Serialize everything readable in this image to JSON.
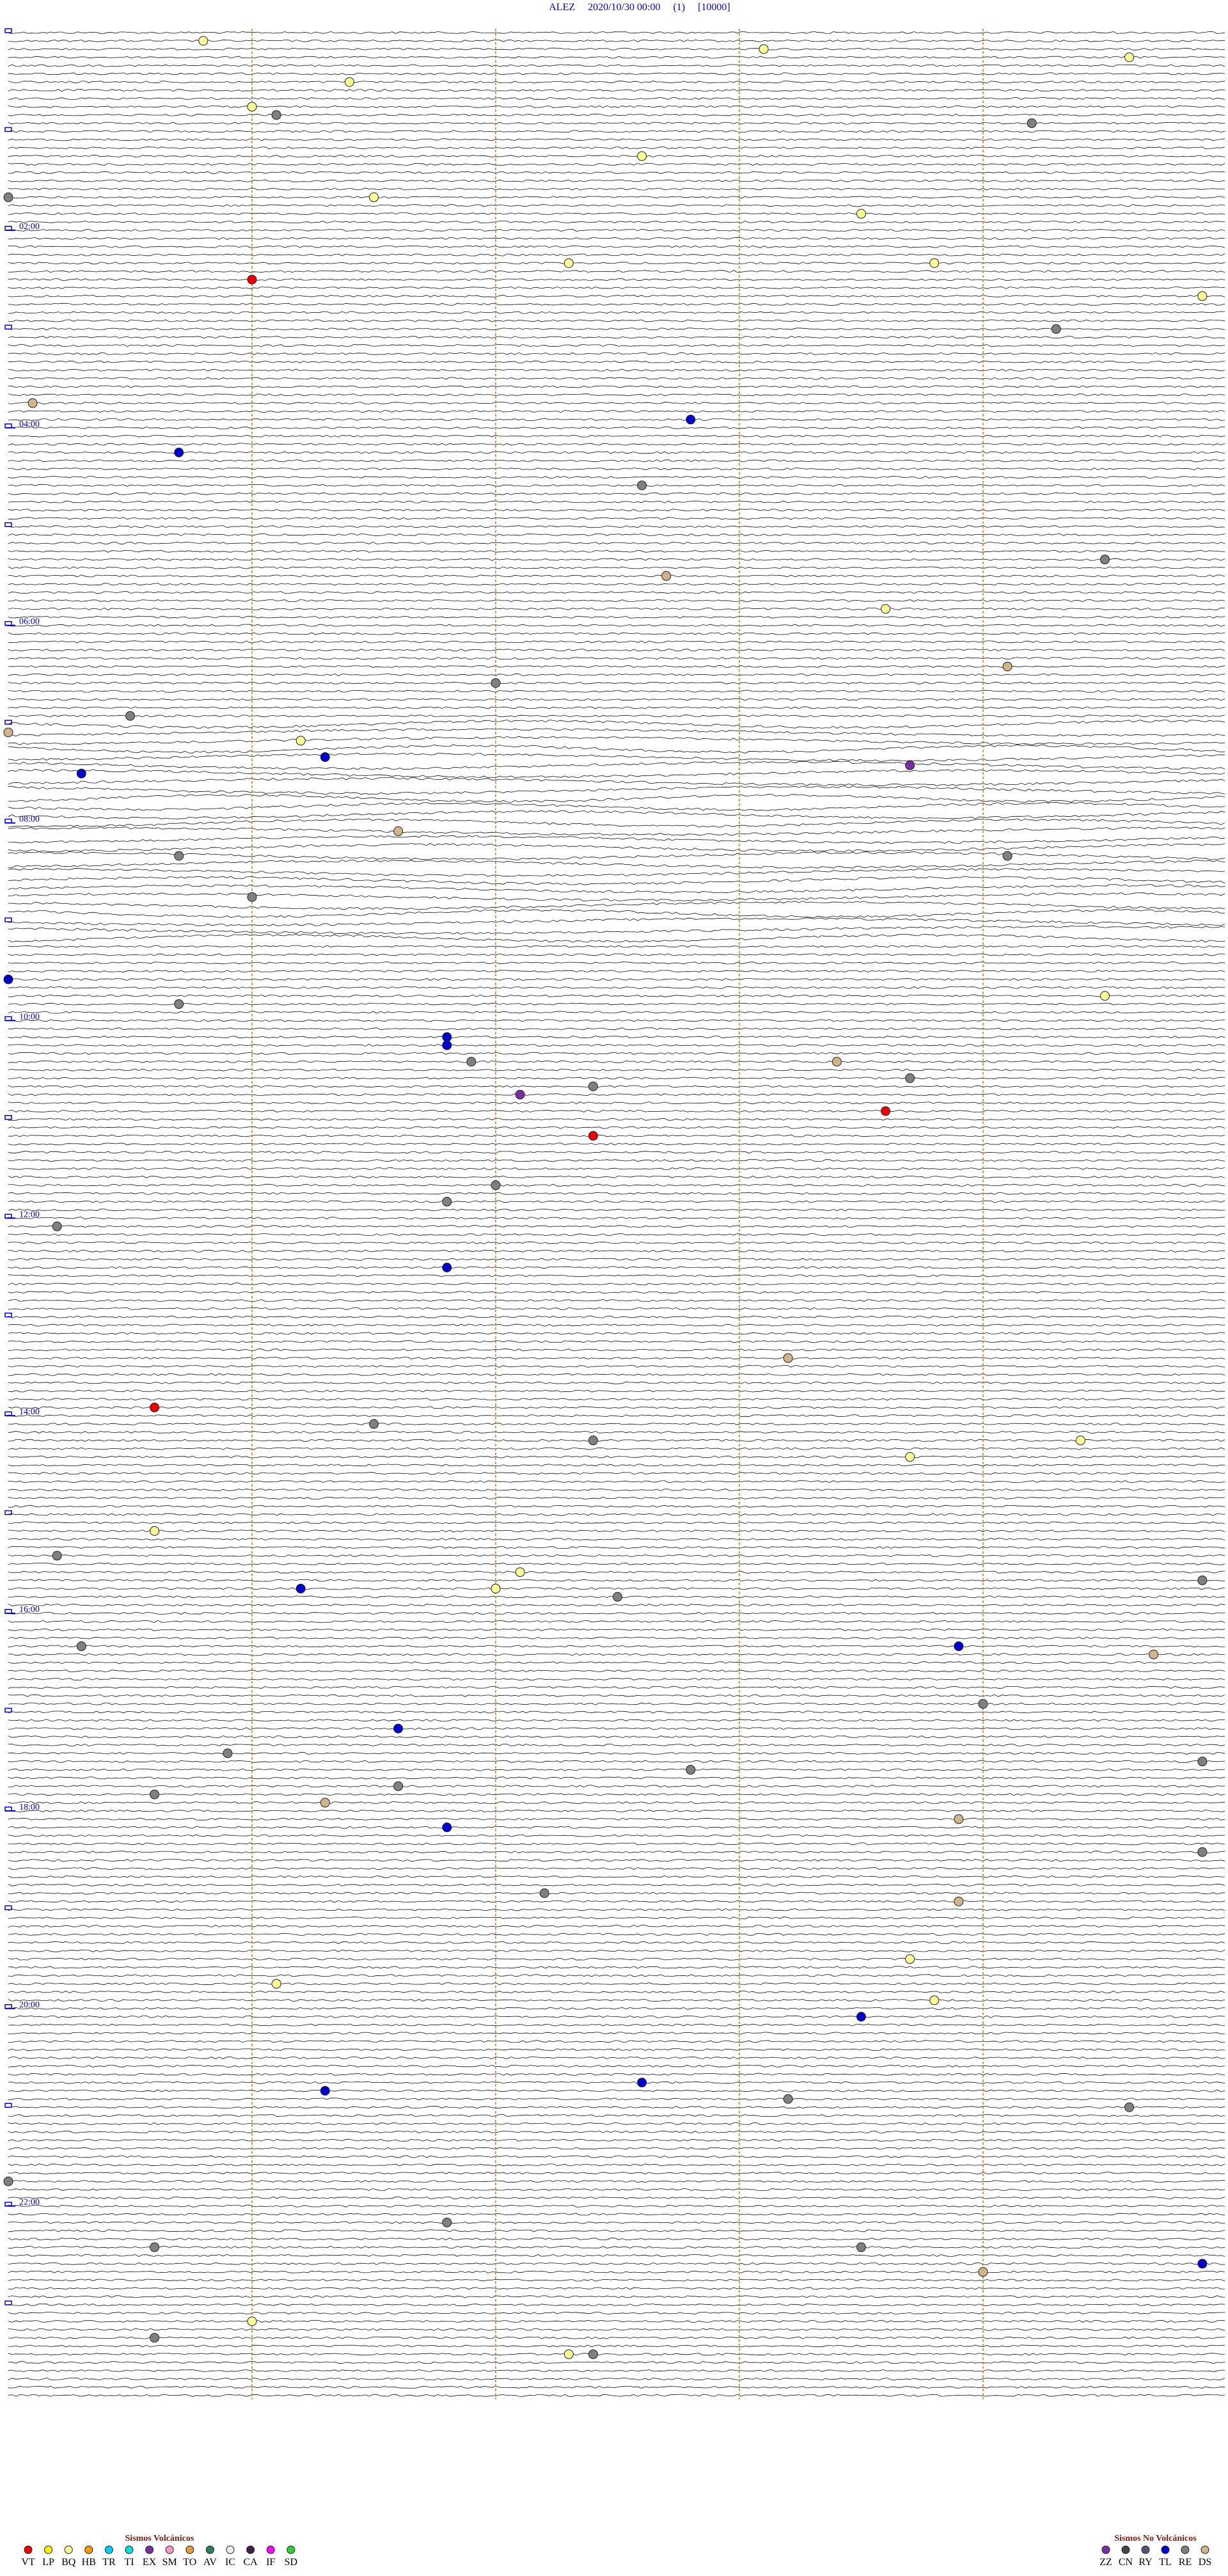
{
  "title": "ALEZ     2020/10/30 00:00     (1)     [10000]",
  "minutes_per_row": 5,
  "rows": 288,
  "hour_labels": [
    {
      "value": 120,
      "label": "02:00"
    },
    {
      "value": 240,
      "label": "04:00"
    },
    {
      "value": 360,
      "label": "06:00"
    },
    {
      "value": 480,
      "label": "08:00"
    },
    {
      "value": 600,
      "label": "10:00"
    },
    {
      "value": 720,
      "label": "12:00"
    },
    {
      "value": 840,
      "label": "14:00"
    },
    {
      "value": 960,
      "label": "16:00"
    },
    {
      "value": 1080,
      "label": "18:00"
    },
    {
      "value": 1200,
      "label": "20:00"
    },
    {
      "value": 1320,
      "label": "22:00"
    }
  ],
  "legend": {
    "volcanic": {
      "title": "Sismos Volcánicos",
      "items": [
        {
          "code": "VT",
          "color": "#ee0000"
        },
        {
          "code": "LP",
          "color": "#ffee00"
        },
        {
          "code": "BQ",
          "color": "#ffff99"
        },
        {
          "code": "HB",
          "color": "#ff9900"
        },
        {
          "code": "TR",
          "color": "#00ccff"
        },
        {
          "code": "TI",
          "color": "#00dddd"
        },
        {
          "code": "EX",
          "color": "#7a2ea0"
        },
        {
          "code": "SM",
          "color": "#ff99cc"
        },
        {
          "code": "TO",
          "color": "#e0a040"
        },
        {
          "code": "AV",
          "color": "#2e7d5b"
        },
        {
          "code": "IC",
          "color": "#f0f0f0"
        },
        {
          "code": "CA",
          "color": "#40204a"
        },
        {
          "code": "IF",
          "color": "#ff00ff"
        },
        {
          "code": "SD",
          "color": "#33cc33"
        }
      ]
    },
    "non_volcanic": {
      "title": "Sismos No Volcánicos",
      "items": [
        {
          "code": "ZZ",
          "color": "#7a2ea0"
        },
        {
          "code": "CN",
          "color": "#444444"
        },
        {
          "code": "RY",
          "color": "#555577"
        },
        {
          "code": "TL",
          "color": "#0000cc"
        },
        {
          "code": "RE",
          "color": "#808080"
        },
        {
          "code": "DS",
          "color": "#d2b48c"
        }
      ]
    }
  },
  "events": [
    {
      "t": 5.8,
      "type": "BQ"
    },
    {
      "t": 13.1,
      "type": "BQ"
    },
    {
      "t": 19.6,
      "type": "BQ"
    },
    {
      "t": 31.4,
      "type": "BQ"
    },
    {
      "t": 46.0,
      "type": "BQ"
    },
    {
      "t": 51.1,
      "type": "RE"
    },
    {
      "t": 59.2,
      "type": "RE"
    },
    {
      "t": 77.6,
      "type": "BQ"
    },
    {
      "t": 100.0,
      "type": "RE"
    },
    {
      "t": 101.5,
      "type": "BQ"
    },
    {
      "t": 113.5,
      "type": "BQ"
    },
    {
      "t": 142.3,
      "type": "BQ"
    },
    {
      "t": 143.8,
      "type": "BQ"
    },
    {
      "t": 151.0,
      "type": "VT"
    },
    {
      "t": 164.9,
      "type": "BQ"
    },
    {
      "t": 184.3,
      "type": "RE"
    },
    {
      "t": 225.1,
      "type": "DS"
    },
    {
      "t": 237.8,
      "type": "TL"
    },
    {
      "t": 255.7,
      "type": "TL"
    },
    {
      "t": 277.6,
      "type": "RE"
    },
    {
      "t": 324.5,
      "type": "RE"
    },
    {
      "t": 332.7,
      "type": "DS"
    },
    {
      "t": 353.6,
      "type": "BQ"
    },
    {
      "t": 389.1,
      "type": "DS"
    },
    {
      "t": 397.0,
      "type": "RE"
    },
    {
      "t": 415.5,
      "type": "RE"
    },
    {
      "t": 425.0,
      "type": "DS"
    },
    {
      "t": 431.2,
      "type": "BQ"
    },
    {
      "t": 441.3,
      "type": "TL"
    },
    {
      "t": 448.7,
      "type": "ZZ"
    },
    {
      "t": 450.3,
      "type": "TL"
    },
    {
      "t": 486.6,
      "type": "DS"
    },
    {
      "t": 500.7,
      "type": "RE"
    },
    {
      "t": 504.1,
      "type": "RE"
    },
    {
      "t": 526.0,
      "type": "RE"
    },
    {
      "t": 575.0,
      "type": "TL"
    },
    {
      "t": 589.5,
      "type": "BQ"
    },
    {
      "t": 590.7,
      "type": "RE"
    },
    {
      "t": 611.8,
      "type": "TL"
    },
    {
      "t": 616.8,
      "type": "TL"
    },
    {
      "t": 626.9,
      "type": "RE"
    },
    {
      "t": 628.4,
      "type": "DS"
    },
    {
      "t": 638.7,
      "type": "RE"
    },
    {
      "t": 642.4,
      "type": "RE"
    },
    {
      "t": 647.1,
      "type": "ZZ"
    },
    {
      "t": 658.6,
      "type": "VT"
    },
    {
      "t": 672.4,
      "type": "VT"
    },
    {
      "t": 702.0,
      "type": "RE"
    },
    {
      "t": 711.8,
      "type": "RE"
    },
    {
      "t": 725.2,
      "type": "RE"
    },
    {
      "t": 751.8,
      "type": "TL"
    },
    {
      "t": 808.2,
      "type": "DS"
    },
    {
      "t": 835.6,
      "type": "VT"
    },
    {
      "t": 846.5,
      "type": "RE"
    },
    {
      "t": 857.4,
      "type": "RE"
    },
    {
      "t": 859.4,
      "type": "BQ"
    },
    {
      "t": 868.7,
      "type": "BQ"
    },
    {
      "t": 910.6,
      "type": "BQ"
    },
    {
      "t": 925.2,
      "type": "RE"
    },
    {
      "t": 937.1,
      "type": "BQ"
    },
    {
      "t": 944.9,
      "type": "RE"
    },
    {
      "t": 946.2,
      "type": "TL"
    },
    {
      "t": 947.0,
      "type": "BQ"
    },
    {
      "t": 952.5,
      "type": "RE"
    },
    {
      "t": 980.3,
      "type": "RE"
    },
    {
      "t": 983.9,
      "type": "TL"
    },
    {
      "t": 989.7,
      "type": "DS"
    },
    {
      "t": 1019.0,
      "type": "RE"
    },
    {
      "t": 1031.6,
      "type": "TL"
    },
    {
      "t": 1045.9,
      "type": "RE"
    },
    {
      "t": 1054.9,
      "type": "RE"
    },
    {
      "t": 1057.8,
      "type": "RE"
    },
    {
      "t": 1066.6,
      "type": "RE"
    },
    {
      "t": 1070.6,
      "type": "RE"
    },
    {
      "t": 1076.3,
      "type": "DS"
    },
    {
      "t": 1088.9,
      "type": "DS"
    },
    {
      "t": 1091.8,
      "type": "TL"
    },
    {
      "t": 1109.9,
      "type": "RE"
    },
    {
      "t": 1132.2,
      "type": "RE"
    },
    {
      "t": 1138.9,
      "type": "DS"
    },
    {
      "t": 1173.7,
      "type": "BQ"
    },
    {
      "t": 1186.1,
      "type": "BQ"
    },
    {
      "t": 1198.8,
      "type": "BQ"
    },
    {
      "t": 1208.5,
      "type": "TL"
    },
    {
      "t": 1247.6,
      "type": "TL"
    },
    {
      "t": 1251.3,
      "type": "TL"
    },
    {
      "t": 1258.2,
      "type": "RE"
    },
    {
      "t": 1264.6,
      "type": "RE"
    },
    {
      "t": 1305.0,
      "type": "RE"
    },
    {
      "t": 1331.8,
      "type": "RE"
    },
    {
      "t": 1345.6,
      "type": "RE"
    },
    {
      "t": 1348.5,
      "type": "RE"
    },
    {
      "t": 1359.9,
      "type": "TL"
    },
    {
      "t": 1364.0,
      "type": "DS"
    },
    {
      "t": 1391.0,
      "type": "BQ"
    },
    {
      "t": 1400.6,
      "type": "RE"
    },
    {
      "t": 1412.3,
      "type": "BQ"
    },
    {
      "t": 1412.4,
      "type": "RE"
    }
  ]
}
